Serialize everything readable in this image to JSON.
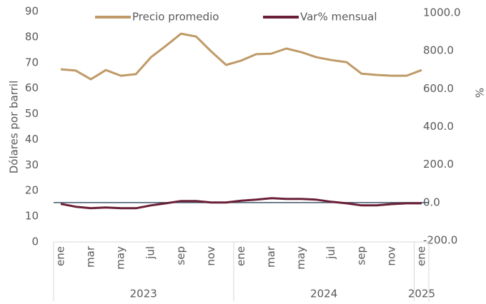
{
  "chart_data": {
    "type": "line",
    "legend": "top",
    "y_label": "Dólares por barril",
    "y2_label": "%",
    "categories": [
      "ene",
      null,
      "mar",
      null,
      "may",
      null,
      "jul",
      null,
      "sep",
      null,
      "nov",
      null,
      "ene",
      null,
      "mar",
      null,
      "may",
      null,
      "jul",
      null,
      "sep",
      null,
      "nov",
      null,
      "ene"
    ],
    "groups": [
      {
        "label": "2023",
        "start": 0,
        "end": 11
      },
      {
        "label": "2024",
        "start": 12,
        "end": 23
      },
      {
        "label": "2025",
        "start": 24,
        "end": 24
      }
    ],
    "series": [
      {
        "name": "Precio promedio",
        "color": "#bf9a68",
        "values": [
          67.4,
          66.9,
          63.5,
          67.1,
          64.9,
          65.5,
          72.1,
          76.6,
          81.3,
          80.2,
          74.4,
          69.1,
          70.8,
          73.3,
          73.5,
          75.5,
          74.1,
          72.1,
          71.0,
          70.2,
          65.7,
          65.2,
          64.9,
          64.9,
          67.1
        ]
      },
      {
        "name": "Var% mensual",
        "color": "#6b1f37",
        "axis": "y2",
        "values": [
          -7,
          -22,
          -30,
          -26,
          -30,
          -30,
          -15,
          -4,
          8,
          8,
          0,
          0,
          10,
          15,
          23,
          19,
          19,
          15,
          4,
          -4,
          -15,
          -15,
          -8,
          -4,
          -4
        ]
      }
    ],
    "ylim": [
      0,
      90
    ],
    "yticks": [
      0,
      10,
      20,
      30,
      40,
      50,
      60,
      70,
      80,
      90
    ],
    "y2lim": [
      -200,
      1000
    ],
    "y2ticks": [
      {
        "value": -200,
        "label": "-200.0"
      },
      {
        "value": 0,
        "label": "0.0"
      },
      {
        "value": 200,
        "label": "200.0"
      },
      {
        "value": 400,
        "label": "400.0"
      },
      {
        "value": 600,
        "label": "600.0"
      },
      {
        "value": 800,
        "label": "800.0"
      },
      {
        "value": 1000,
        "label": "1000.0"
      }
    ]
  }
}
